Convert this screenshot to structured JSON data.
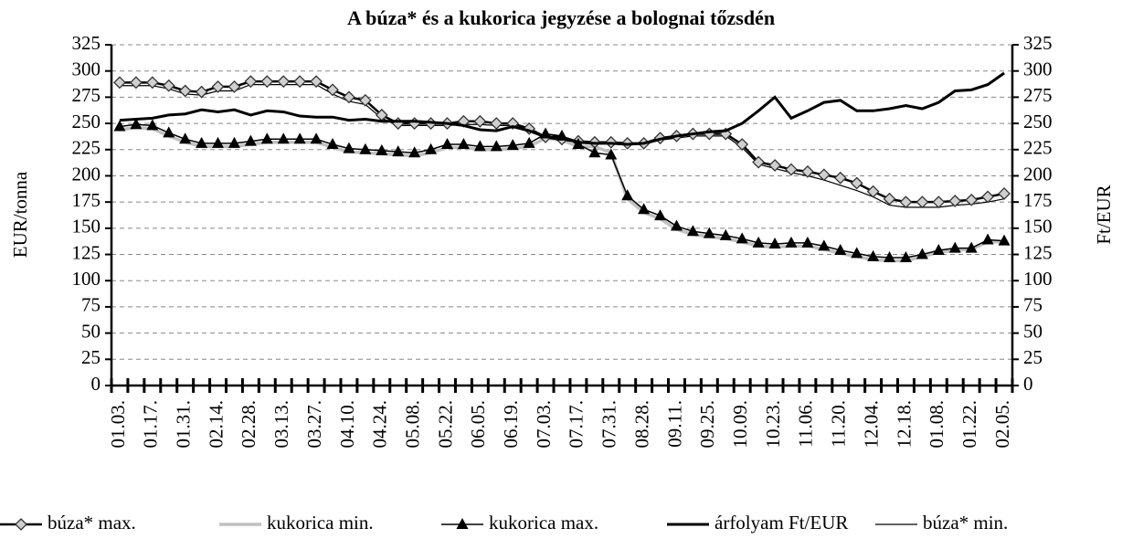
{
  "chart_data": {
    "type": "line",
    "title": "A búza* és a kukorica jegyzése a bolognai tőzsdén",
    "ylabel": "EUR/tonna",
    "y2label": "Ft/EUR",
    "categories": [
      "01.03.",
      null,
      "01.17.",
      null,
      "01.31.",
      null,
      "02.14.",
      null,
      "02.28.",
      null,
      "03.13.",
      null,
      "03.27.",
      null,
      "04.10.",
      null,
      "04.24.",
      null,
      "05.08.",
      null,
      "05.22.",
      null,
      "06.05.",
      null,
      "06.19.",
      null,
      "07.03.",
      null,
      "07.17.",
      null,
      "07.31.",
      null,
      "08.28.",
      null,
      "09.11.",
      null,
      "09.25.",
      null,
      "10.09.",
      null,
      "10.23.",
      null,
      "11.06.",
      null,
      "11.20.",
      null,
      "12.04.",
      null,
      "12.18.",
      null,
      "01.08.",
      null,
      "01.22.",
      null,
      "02.05."
    ],
    "ylim": [
      0,
      325
    ],
    "yticks": [
      0,
      25,
      50,
      75,
      100,
      125,
      150,
      175,
      200,
      225,
      250,
      275,
      300,
      325
    ],
    "y2lim": [
      0,
      325
    ],
    "y2ticks": [
      0,
      25,
      50,
      75,
      100,
      125,
      150,
      175,
      200,
      225,
      250,
      275,
      300,
      325
    ],
    "grid": true,
    "legend": "bottom",
    "series": [
      {
        "name": "búza* max.",
        "color": "#000000",
        "marker": "diamond",
        "values": [
          289,
          289,
          289,
          286,
          281,
          280,
          285,
          285,
          290,
          290,
          290,
          290,
          290,
          282,
          275,
          272,
          258,
          250,
          250,
          250,
          250,
          252,
          252,
          250,
          250,
          245,
          237,
          235,
          233,
          232,
          232,
          231,
          231,
          236,
          238,
          240,
          240,
          240,
          230,
          213,
          210,
          206,
          204,
          201,
          198,
          193,
          185,
          178,
          175,
          175,
          175,
          176,
          177,
          180,
          183
        ]
      },
      {
        "name": "kukorica min.",
        "color": "#c0c0c0",
        "marker": null,
        "values": [
          244,
          246,
          245,
          238,
          232,
          228,
          228,
          228,
          230,
          232,
          232,
          232,
          232,
          227,
          223,
          222,
          221,
          220,
          219,
          222,
          227,
          227,
          225,
          225,
          226,
          228,
          236,
          234,
          228,
          228,
          222,
          178,
          165,
          159,
          149,
          144,
          142,
          140,
          137,
          133,
          132,
          133,
          133,
          130,
          126,
          123,
          120,
          119,
          119,
          123,
          127,
          129,
          130,
          137,
          137
        ]
      },
      {
        "name": "kukorica max.",
        "color": "#000000",
        "marker": "triangle",
        "values": [
          247,
          249,
          248,
          241,
          235,
          231,
          231,
          231,
          233,
          235,
          235,
          235,
          235,
          230,
          226,
          225,
          224,
          223,
          222,
          225,
          230,
          230,
          228,
          228,
          229,
          231,
          240,
          238,
          230,
          222,
          220,
          181,
          168,
          162,
          152,
          147,
          145,
          143,
          140,
          136,
          135,
          136,
          136,
          133,
          129,
          126,
          123,
          122,
          122,
          125,
          129,
          131,
          131,
          139,
          138
        ]
      },
      {
        "name": "árfolyam Ft/EUR",
        "color": "#000000",
        "marker": null,
        "axis": "y2",
        "values": [
          253,
          254,
          255,
          258,
          259,
          263,
          261,
          263,
          258,
          262,
          261,
          257,
          256,
          256,
          253,
          254,
          252,
          252,
          252,
          251,
          250,
          248,
          244,
          243,
          247,
          243,
          237,
          237,
          232,
          231,
          231,
          230,
          231,
          235,
          238,
          240,
          242,
          243,
          250,
          262,
          275,
          255,
          262,
          270,
          272,
          262,
          262,
          264,
          267,
          264,
          270,
          281,
          282,
          287,
          298
        ]
      },
      {
        "name": "búza* min.",
        "color": "#000000",
        "marker": null,
        "values": [
          286,
          286,
          286,
          283,
          278,
          277,
          281,
          281,
          287,
          287,
          287,
          287,
          287,
          278,
          271,
          268,
          255,
          248,
          248,
          248,
          248,
          249,
          249,
          248,
          248,
          244,
          236,
          234,
          232,
          231,
          231,
          230,
          230,
          234,
          236,
          238,
          238,
          238,
          227,
          211,
          207,
          203,
          200,
          196,
          191,
          186,
          180,
          172,
          170,
          170,
          170,
          172,
          173,
          175,
          178
        ]
      }
    ]
  }
}
